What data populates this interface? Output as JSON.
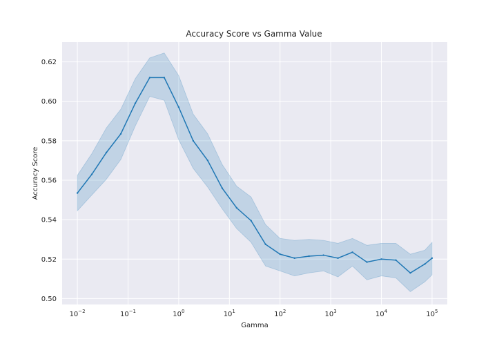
{
  "chart_data": {
    "type": "line",
    "title": "Accuracy Score vs Gamma Value",
    "xlabel": "Gamma",
    "ylabel": "Accuracy Score",
    "x_scale": "log",
    "grid": true,
    "legend": "none",
    "xlim": [
      0.005,
      200000
    ],
    "ylim": [
      0.497,
      0.63
    ],
    "x_ticks": [
      {
        "value": 0.01,
        "base": "10",
        "exp": "−2"
      },
      {
        "value": 0.1,
        "base": "10",
        "exp": "−1"
      },
      {
        "value": 1,
        "base": "10",
        "exp": "0"
      },
      {
        "value": 10,
        "base": "10",
        "exp": "1"
      },
      {
        "value": 100,
        "base": "10",
        "exp": "2"
      },
      {
        "value": 1000,
        "base": "10",
        "exp": "3"
      },
      {
        "value": 10000,
        "base": "10",
        "exp": "4"
      },
      {
        "value": 100000,
        "base": "10",
        "exp": "5"
      }
    ],
    "y_ticks": [
      "0.50",
      "0.52",
      "0.54",
      "0.56",
      "0.58",
      "0.60",
      "0.62"
    ],
    "colors": {
      "line": "#1f77b4",
      "band": "#1f77b4",
      "plot_background": "#eaeaf2",
      "grid": "#ffffff"
    },
    "series": [
      {
        "x": [
          0.01,
          0.0193,
          0.0373,
          0.072,
          0.139,
          0.268,
          0.518,
          1.0,
          1.93,
          3.73,
          7.2,
          13.9,
          26.8,
          51.8,
          100,
          193,
          373,
          720,
          1389,
          2683,
          5179,
          10000,
          19307,
          37276,
          71969,
          100000
        ],
        "y": [
          0.5535,
          0.563,
          0.574,
          0.5835,
          0.599,
          0.612,
          0.612,
          0.597,
          0.58,
          0.57,
          0.556,
          0.546,
          0.5395,
          0.5275,
          0.5225,
          0.5205,
          0.5215,
          0.522,
          0.5205,
          0.5235,
          0.5185,
          0.52,
          0.5195,
          0.513,
          0.5175,
          0.5205
        ],
        "lower": [
          0.5445,
          0.5525,
          0.5605,
          0.5705,
          0.5875,
          0.6025,
          0.6005,
          0.5805,
          0.566,
          0.5565,
          0.5455,
          0.5355,
          0.5285,
          0.5165,
          0.514,
          0.5115,
          0.513,
          0.514,
          0.511,
          0.5165,
          0.5095,
          0.5115,
          0.5105,
          0.5035,
          0.5085,
          0.512
        ],
        "upper": [
          0.5625,
          0.5735,
          0.5865,
          0.596,
          0.6115,
          0.622,
          0.6245,
          0.613,
          0.5935,
          0.5835,
          0.568,
          0.557,
          0.5515,
          0.5375,
          0.5305,
          0.5295,
          0.53,
          0.5295,
          0.528,
          0.5305,
          0.527,
          0.528,
          0.528,
          0.5225,
          0.5245,
          0.5285
        ]
      }
    ]
  }
}
